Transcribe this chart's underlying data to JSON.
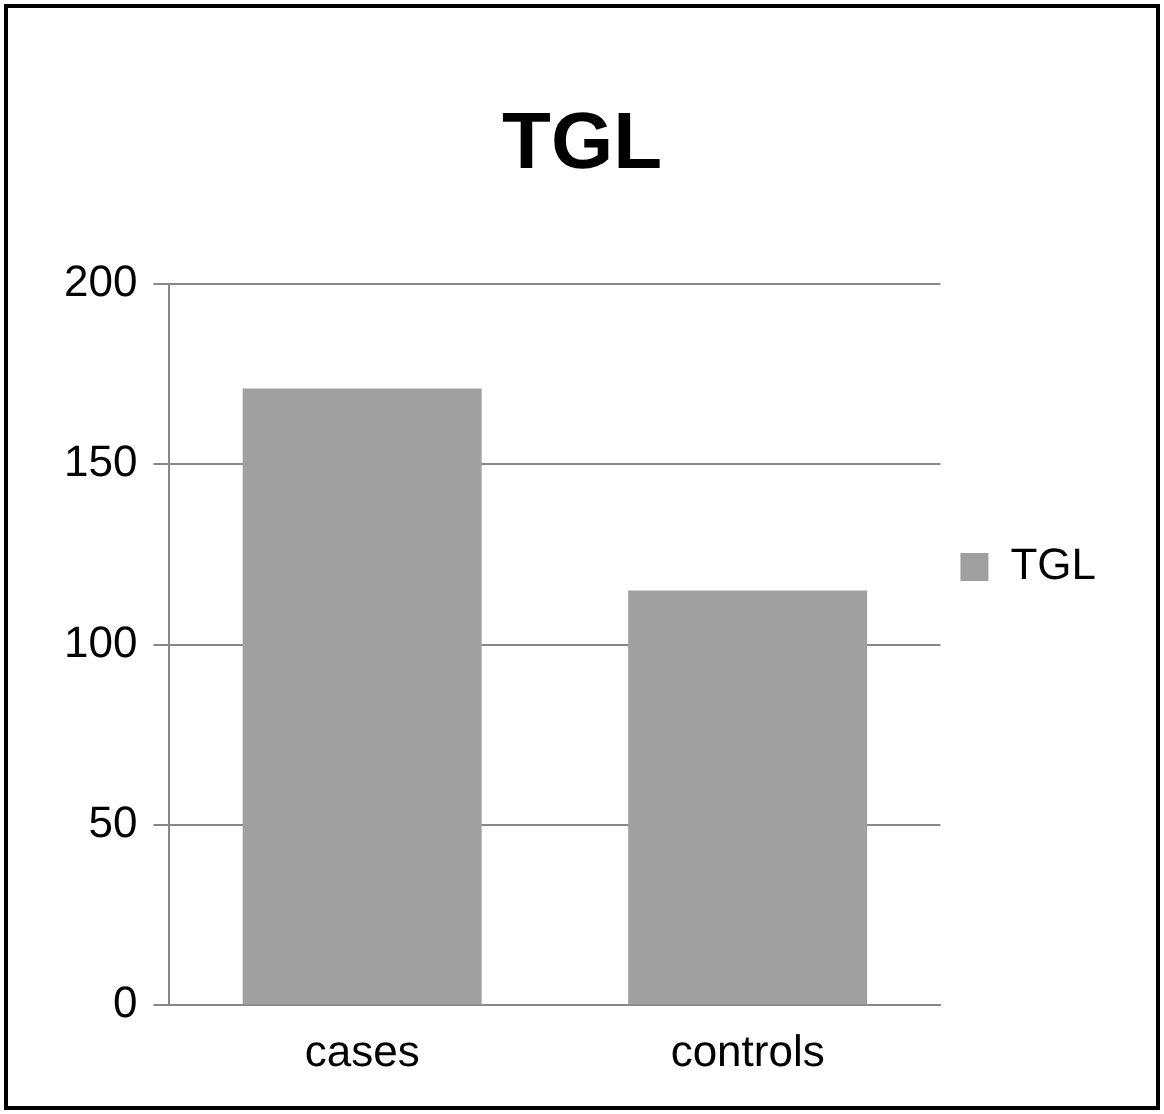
{
  "chart_data": {
    "type": "bar",
    "title": "TGL",
    "categories": [
      "cases",
      "controls"
    ],
    "series": [
      {
        "name": "TGL",
        "color": "#a0a0a0",
        "values": [
          171,
          115
        ]
      }
    ],
    "ylim": [
      0,
      200
    ],
    "yticks": [
      0,
      50,
      100,
      150,
      200
    ],
    "grid": "y",
    "legend": "right"
  }
}
